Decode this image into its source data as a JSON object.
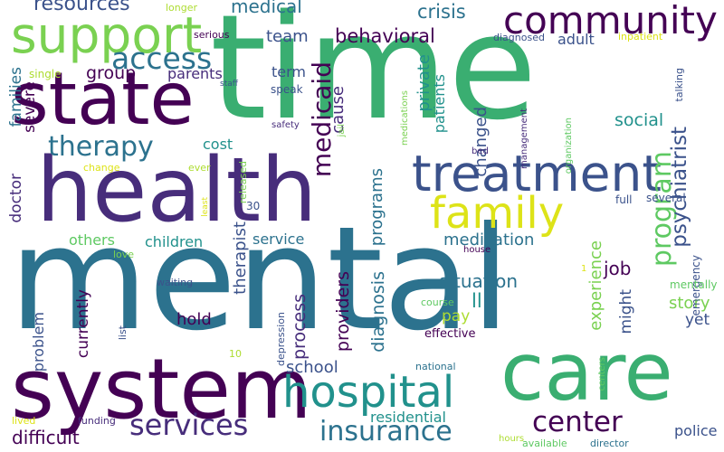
{
  "palette": {
    "background": "#ffffff",
    "c1": "#440154",
    "c2": "#472d7b",
    "c3": "#3b528b",
    "c4": "#2c728e",
    "c5": "#21918c",
    "c6": "#28ae80",
    "c7": "#5ec962",
    "c8": "#addc30",
    "c9": "#dde318"
  },
  "words": [
    {
      "text": "mental",
      "color": "#2c728e"
    },
    {
      "text": "time",
      "color": "#3aae71"
    },
    {
      "text": "health",
      "color": "#472d7b"
    },
    {
      "text": "state",
      "color": "#440154"
    },
    {
      "text": "system",
      "color": "#440154"
    },
    {
      "text": "care",
      "color": "#3aae71"
    },
    {
      "text": "treatment",
      "color": "#3b528b"
    },
    {
      "text": "support",
      "color": "#7ad151"
    },
    {
      "text": "community",
      "color": "#440154"
    },
    {
      "text": "hospital",
      "color": "#21918c"
    },
    {
      "text": "family",
      "color": "#dde318"
    },
    {
      "text": "access",
      "color": "#2c728e"
    },
    {
      "text": "insurance",
      "color": "#2c728e"
    },
    {
      "text": "services",
      "color": "#472d7b"
    },
    {
      "text": "therapy",
      "color": "#2c728e"
    },
    {
      "text": "center",
      "color": "#440154"
    },
    {
      "text": "medicaid",
      "color": "#440154"
    },
    {
      "text": "program",
      "color": "#5ec962"
    },
    {
      "text": "resources",
      "color": "#3b528b"
    },
    {
      "text": "medical",
      "color": "#2c728e"
    },
    {
      "text": "crisis",
      "color": "#2c728e"
    },
    {
      "text": "behavioral",
      "color": "#440154"
    },
    {
      "text": "psychiatrist",
      "color": "#3b528b"
    },
    {
      "text": "group",
      "color": "#440154"
    },
    {
      "text": "social",
      "color": "#21918c"
    },
    {
      "text": "team",
      "color": "#3b528b"
    },
    {
      "text": "adult",
      "color": "#3b528b"
    },
    {
      "text": "term",
      "color": "#3b528b"
    },
    {
      "text": "parents",
      "color": "#472d7b"
    },
    {
      "text": "cause",
      "color": "#472d7b"
    },
    {
      "text": "private",
      "color": "#21918c"
    },
    {
      "text": "patients",
      "color": "#21918c"
    },
    {
      "text": "cost",
      "color": "#21918c"
    },
    {
      "text": "changed",
      "color": "#3b528b"
    },
    {
      "text": "severe",
      "color": "#440154"
    },
    {
      "text": "single",
      "color": "#addc30"
    },
    {
      "text": "families",
      "color": "#2c728e"
    },
    {
      "text": "doctor",
      "color": "#472d7b"
    },
    {
      "text": "programs",
      "color": "#2c728e"
    },
    {
      "text": "medication",
      "color": "#2c728e"
    },
    {
      "text": "children",
      "color": "#21918c"
    },
    {
      "text": "others",
      "color": "#5ec962"
    },
    {
      "text": "service",
      "color": "#2c728e"
    },
    {
      "text": "situation",
      "color": "#2c728e"
    },
    {
      "text": "providers",
      "color": "#440154"
    },
    {
      "text": "diagnosis",
      "color": "#2c728e"
    },
    {
      "text": "process",
      "color": "#472d7b"
    },
    {
      "text": "therapist",
      "color": "#3b528b"
    },
    {
      "text": "experience",
      "color": "#7ad151"
    },
    {
      "text": "job",
      "color": "#440154"
    },
    {
      "text": "might",
      "color": "#3b528b"
    },
    {
      "text": "story",
      "color": "#7ad151"
    },
    {
      "text": "yet",
      "color": "#3b528b"
    },
    {
      "text": "pay",
      "color": "#addc30"
    },
    {
      "text": "ll",
      "color": "#21918c"
    },
    {
      "text": "hold",
      "color": "#440154"
    },
    {
      "text": "problem",
      "color": "#3b528b"
    },
    {
      "text": "currently",
      "color": "#440154"
    },
    {
      "text": "school",
      "color": "#3b528b"
    },
    {
      "text": "residential",
      "color": "#21918c"
    },
    {
      "text": "police",
      "color": "#3b528b"
    },
    {
      "text": "difficult",
      "color": "#440154"
    },
    {
      "text": "effective",
      "color": "#440154"
    },
    {
      "text": "full",
      "color": "#3b528b"
    },
    {
      "text": "several",
      "color": "#3b528b"
    },
    {
      "text": "emergency",
      "color": "#3b528b"
    },
    {
      "text": "mentally",
      "color": "#5ec962"
    },
    {
      "text": "management",
      "color": "#472d7b"
    },
    {
      "text": "talking",
      "color": "#3b528b"
    },
    {
      "text": "organization",
      "color": "#5ec962"
    },
    {
      "text": "inpatient",
      "color": "#dde318"
    },
    {
      "text": "diagnosed",
      "color": "#3b528b"
    },
    {
      "text": "medications",
      "color": "#7ad151"
    },
    {
      "text": "bed",
      "color": "#472d7b"
    },
    {
      "text": "jail",
      "color": "#7ad151"
    },
    {
      "text": "safety",
      "color": "#472d7b"
    },
    {
      "text": "speak",
      "color": "#3b528b"
    },
    {
      "text": "staff",
      "color": "#3b528b"
    },
    {
      "text": "serious",
      "color": "#440154"
    },
    {
      "text": "longer",
      "color": "#addc30"
    },
    {
      "text": "change",
      "color": "#dde318"
    },
    {
      "text": "ever",
      "color": "#addc30"
    },
    {
      "text": "least",
      "color": "#dde318"
    },
    {
      "text": "released",
      "color": "#7ad151"
    },
    {
      "text": "30",
      "color": "#3b528b"
    },
    {
      "text": "love",
      "color": "#7ad151"
    },
    {
      "text": "waiting",
      "color": "#3b528b"
    },
    {
      "text": "list",
      "color": "#3b528b"
    },
    {
      "text": "10",
      "color": "#addc30"
    },
    {
      "text": "depression",
      "color": "#3b528b"
    },
    {
      "text": "house",
      "color": "#440154"
    },
    {
      "text": "course",
      "color": "#5ec962"
    },
    {
      "text": "national",
      "color": "#2c728e"
    },
    {
      "text": "centers",
      "color": "#5ec962"
    },
    {
      "text": "hours",
      "color": "#addc30"
    },
    {
      "text": "available",
      "color": "#5ec962"
    },
    {
      "text": "director",
      "color": "#2c728e"
    },
    {
      "text": "funding",
      "color": "#472d7b"
    },
    {
      "text": "lived",
      "color": "#dde318"
    },
    {
      "text": "1",
      "color": "#dde318"
    }
  ]
}
